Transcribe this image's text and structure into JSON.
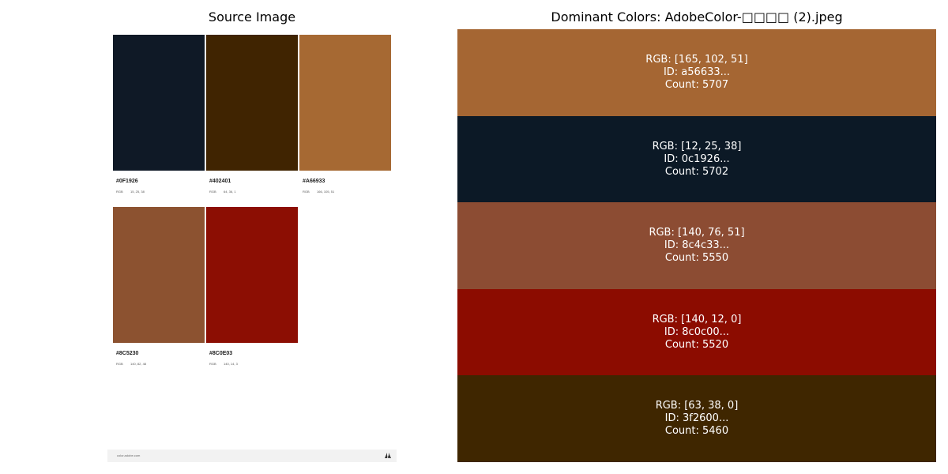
{
  "left_panel": {
    "title": "Source Image",
    "swatches": [
      {
        "hex": "#0F1926",
        "color": "#0f1926",
        "rgb_label": "RGB",
        "rgb_value": "15, 25, 38"
      },
      {
        "hex": "#402401",
        "color": "#402401",
        "rgb_label": "RGB",
        "rgb_value": "64, 36, 1"
      },
      {
        "hex": "#A66933",
        "color": "#a66933",
        "rgb_label": "RGB",
        "rgb_value": "166, 105, 51"
      },
      {
        "hex": "#8C5230",
        "color": "#8c5230",
        "rgb_label": "RGB",
        "rgb_value": "140, 82, 48"
      },
      {
        "hex": "#8C0E03",
        "color": "#8c0e03",
        "rgb_label": "RGB",
        "rgb_value": "140, 14, 3"
      }
    ],
    "footer_text": "color.adobe.com",
    "footer_logo": "adobe-logo-icon"
  },
  "chart_data": {
    "type": "bar",
    "title": "Dominant Colors: AdobeColor-□□□□ (2).jpeg",
    "colors": [
      {
        "rgb_text": "RGB: [165, 102, 51]",
        "id_text": "ID: a56633...",
        "count_text": "Count: 5707",
        "rgb": [
          165,
          102,
          51
        ],
        "count": 5707,
        "hex": "#a56633"
      },
      {
        "rgb_text": "RGB: [12, 25, 38]",
        "id_text": "ID: 0c1926...",
        "count_text": "Count: 5702",
        "rgb": [
          12,
          25,
          38
        ],
        "count": 5702,
        "hex": "#0c1926"
      },
      {
        "rgb_text": "RGB: [140, 76, 51]",
        "id_text": "ID: 8c4c33...",
        "count_text": "Count: 5550",
        "rgb": [
          140,
          76,
          51
        ],
        "count": 5550,
        "hex": "#8c4c33"
      },
      {
        "rgb_text": "RGB: [140, 12, 0]",
        "id_text": "ID: 8c0c00...",
        "count_text": "Count: 5520",
        "rgb": [
          140,
          12,
          0
        ],
        "count": 5520,
        "hex": "#8c0c00"
      },
      {
        "rgb_text": "RGB: [63, 38, 0]",
        "id_text": "ID: 3f2600...",
        "count_text": "Count: 5460",
        "rgb": [
          63,
          38,
          0
        ],
        "count": 5460,
        "hex": "#3f2600"
      }
    ]
  }
}
